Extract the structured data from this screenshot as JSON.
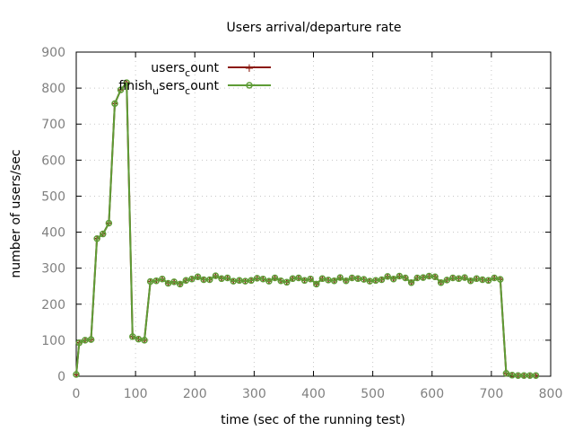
{
  "chart_data": {
    "type": "line",
    "title": "Users arrival/departure rate",
    "xlabel": "time (sec of the running test)",
    "ylabel": "number of users/sec",
    "xlim": [
      0,
      800
    ],
    "ylim": [
      0,
      900
    ],
    "xticks": [
      0,
      100,
      200,
      300,
      400,
      500,
      600,
      700,
      800
    ],
    "yticks": [
      0,
      100,
      200,
      300,
      400,
      500,
      600,
      700,
      800,
      900
    ],
    "grid": true,
    "legend_position": "top-left",
    "x": [
      0,
      5,
      15,
      25,
      35,
      45,
      55,
      65,
      75,
      85,
      95,
      105,
      115,
      125,
      135,
      145,
      155,
      165,
      175,
      185,
      195,
      205,
      215,
      225,
      235,
      245,
      255,
      265,
      275,
      285,
      295,
      305,
      315,
      325,
      335,
      345,
      355,
      365,
      375,
      385,
      395,
      405,
      415,
      425,
      435,
      445,
      455,
      465,
      475,
      485,
      495,
      505,
      515,
      525,
      535,
      545,
      555,
      565,
      575,
      585,
      595,
      605,
      615,
      625,
      635,
      645,
      655,
      665,
      675,
      685,
      695,
      705,
      715,
      725,
      735,
      745,
      755,
      765,
      775
    ],
    "series": [
      {
        "legend_main": "users",
        "legend_sub": "c",
        "legend_tail": "ount",
        "color": "#8b1a0e",
        "values": [
          5,
          93,
          100,
          102,
          382,
          395,
          425,
          757,
          795,
          815,
          110,
          103,
          100,
          263,
          265,
          270,
          258,
          262,
          256,
          266,
          270,
          276,
          268,
          268,
          279,
          271,
          273,
          264,
          266,
          264,
          266,
          272,
          270,
          264,
          273,
          265,
          261,
          271,
          273,
          266,
          270,
          256,
          271,
          267,
          265,
          274,
          265,
          273,
          271,
          269,
          264,
          266,
          268,
          277,
          270,
          278,
          273,
          260,
          273,
          274,
          278,
          276,
          260,
          267,
          273,
          271,
          274,
          265,
          271,
          268,
          266,
          273,
          269,
          8,
          3,
          2,
          2,
          2,
          2
        ]
      },
      {
        "legend_main": "finish",
        "legend_sub": "u",
        "legend_tail": "sers",
        "legend_sub2": "c",
        "legend_tail2": "ount",
        "color": "#5e9c36",
        "values": [
          5,
          93,
          100,
          102,
          382,
          395,
          425,
          757,
          795,
          815,
          110,
          103,
          100,
          263,
          265,
          270,
          258,
          262,
          256,
          266,
          270,
          276,
          268,
          268,
          279,
          271,
          273,
          264,
          266,
          264,
          266,
          272,
          270,
          264,
          273,
          265,
          261,
          271,
          273,
          266,
          270,
          256,
          271,
          267,
          265,
          274,
          265,
          273,
          271,
          269,
          264,
          266,
          268,
          277,
          270,
          278,
          273,
          260,
          273,
          274,
          278,
          276,
          260,
          267,
          273,
          271,
          274,
          265,
          271,
          268,
          266,
          273,
          269,
          8,
          3,
          2,
          2,
          2,
          2
        ]
      }
    ]
  }
}
